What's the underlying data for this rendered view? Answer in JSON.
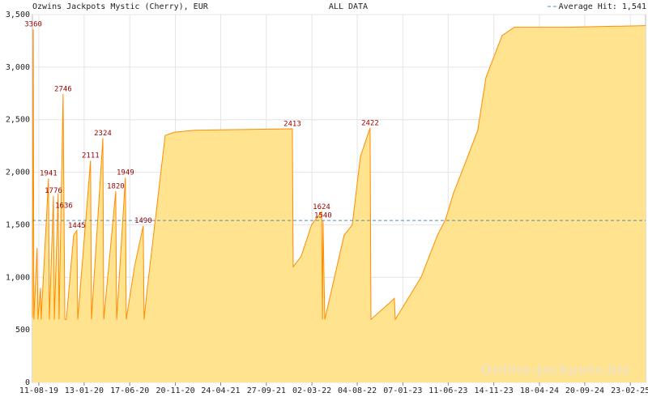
{
  "chart_data": {
    "type": "area",
    "title": "Ozwins Jackpots Mystic (Cherry), EUR",
    "subtitle": "ALL DATA",
    "watermark": "Online-Jackpots.biz",
    "average": {
      "value": 1541,
      "label": "Average Hit: 1,541",
      "color": "#4a90b8"
    },
    "fill_color": "#ffe38f",
    "line_color": "#ff8c00",
    "label_color": "#990000",
    "grid": true,
    "x": [
      "2019-07-20",
      "2019-07-23",
      "2019-07-25",
      "2019-08-05",
      "2019-08-08",
      "2019-08-17",
      "2019-08-19",
      "2019-09-13",
      "2019-09-16",
      "2019-09-30",
      "2019-10-03",
      "2019-10-16",
      "2019-10-19",
      "2019-11-02",
      "2019-11-05",
      "2019-11-08",
      "2019-11-13",
      "2019-12-08",
      "2019-12-19",
      "2019-12-22",
      "2020-02-04",
      "2020-02-07",
      "2020-03-17",
      "2020-03-20",
      "2020-04-30",
      "2020-05-03",
      "2020-06-02",
      "2020-06-05",
      "2020-07-03",
      "2020-08-02",
      "2020-08-05",
      "2020-08-16",
      "2020-10-16",
      "2020-11-16",
      "2021-01-24",
      "2021-12-25",
      "2021-12-28",
      "2022-01-24",
      "2022-03-01",
      "2022-04-04",
      "2022-04-07",
      "2022-04-09",
      "2022-04-15",
      "2022-06-20",
      "2022-07-18",
      "2022-08-15",
      "2022-09-17",
      "2022-09-20",
      "2022-11-20",
      "2022-12-09",
      "2022-12-12",
      "2023-03-10",
      "2023-05-05",
      "2023-06-02",
      "2023-06-29",
      "2023-08-10",
      "2023-09-20",
      "2023-10-18",
      "2023-12-12",
      "2024-01-23",
      "2024-07-21",
      "2025-04-16"
    ],
    "values": [
      620,
      3360,
      600,
      1280,
      600,
      900,
      600,
      1941,
      600,
      1776,
      600,
      1800,
      600,
      2746,
      1636,
      600,
      600,
      1400,
      1445,
      600,
      2111,
      600,
      2324,
      600,
      1820,
      600,
      1949,
      600,
      1100,
      1490,
      600,
      900,
      2350,
      2380,
      2400,
      2413,
      1100,
      1200,
      1500,
      1624,
      600,
      1540,
      600,
      1400,
      1500,
      2150,
      2422,
      600,
      750,
      800,
      600,
      1000,
      1400,
      1550,
      1800,
      2100,
      2400,
      2900,
      3300,
      3380,
      3380,
      3395
    ],
    "value_labels": [
      null,
      "3360",
      null,
      null,
      null,
      null,
      null,
      "1941",
      null,
      "1776",
      null,
      null,
      null,
      "2746",
      "1636",
      null,
      null,
      null,
      "1445",
      null,
      "2111",
      null,
      "2324",
      null,
      "1820",
      null,
      "1949",
      null,
      null,
      "1490",
      null,
      null,
      null,
      null,
      null,
      "2413",
      null,
      null,
      null,
      "1624",
      null,
      "1540",
      null,
      null,
      null,
      null,
      "2422",
      null,
      null,
      null,
      null,
      null,
      null,
      null,
      null,
      null,
      null,
      null,
      null,
      null,
      null,
      null
    ],
    "xlim": [
      "2019-07-20",
      "2025-04-16"
    ],
    "xticks": [
      {
        "value": "2019-08-11",
        "label": "11-08-19"
      },
      {
        "value": "2020-01-13",
        "label": "13-01-20"
      },
      {
        "value": "2020-06-17",
        "label": "17-06-20"
      },
      {
        "value": "2020-11-20",
        "label": "20-11-20"
      },
      {
        "value": "2021-04-24",
        "label": "24-04-21"
      },
      {
        "value": "2021-09-27",
        "label": "27-09-21"
      },
      {
        "value": "2022-03-02",
        "label": "02-03-22"
      },
      {
        "value": "2022-08-04",
        "label": "04-08-22"
      },
      {
        "value": "2023-01-07",
        "label": "07-01-23"
      },
      {
        "value": "2023-06-11",
        "label": "11-06-23"
      },
      {
        "value": "2023-11-14",
        "label": "14-11-23"
      },
      {
        "value": "2024-04-18",
        "label": "18-04-24"
      },
      {
        "value": "2024-09-20",
        "label": "20-09-24"
      },
      {
        "value": "2025-02-23",
        "label": "23-02-25"
      }
    ],
    "ylim": [
      0,
      3500
    ],
    "yticks": [
      0,
      500,
      {
        "value": 1000,
        "label": "1,000"
      },
      {
        "value": 1500,
        "label": "1,500"
      },
      {
        "value": 2000,
        "label": "2,000"
      },
      {
        "value": 2500,
        "label": "2,500"
      },
      {
        "value": 3000,
        "label": "3,000"
      },
      {
        "value": 3500,
        "label": "3,500"
      }
    ]
  }
}
